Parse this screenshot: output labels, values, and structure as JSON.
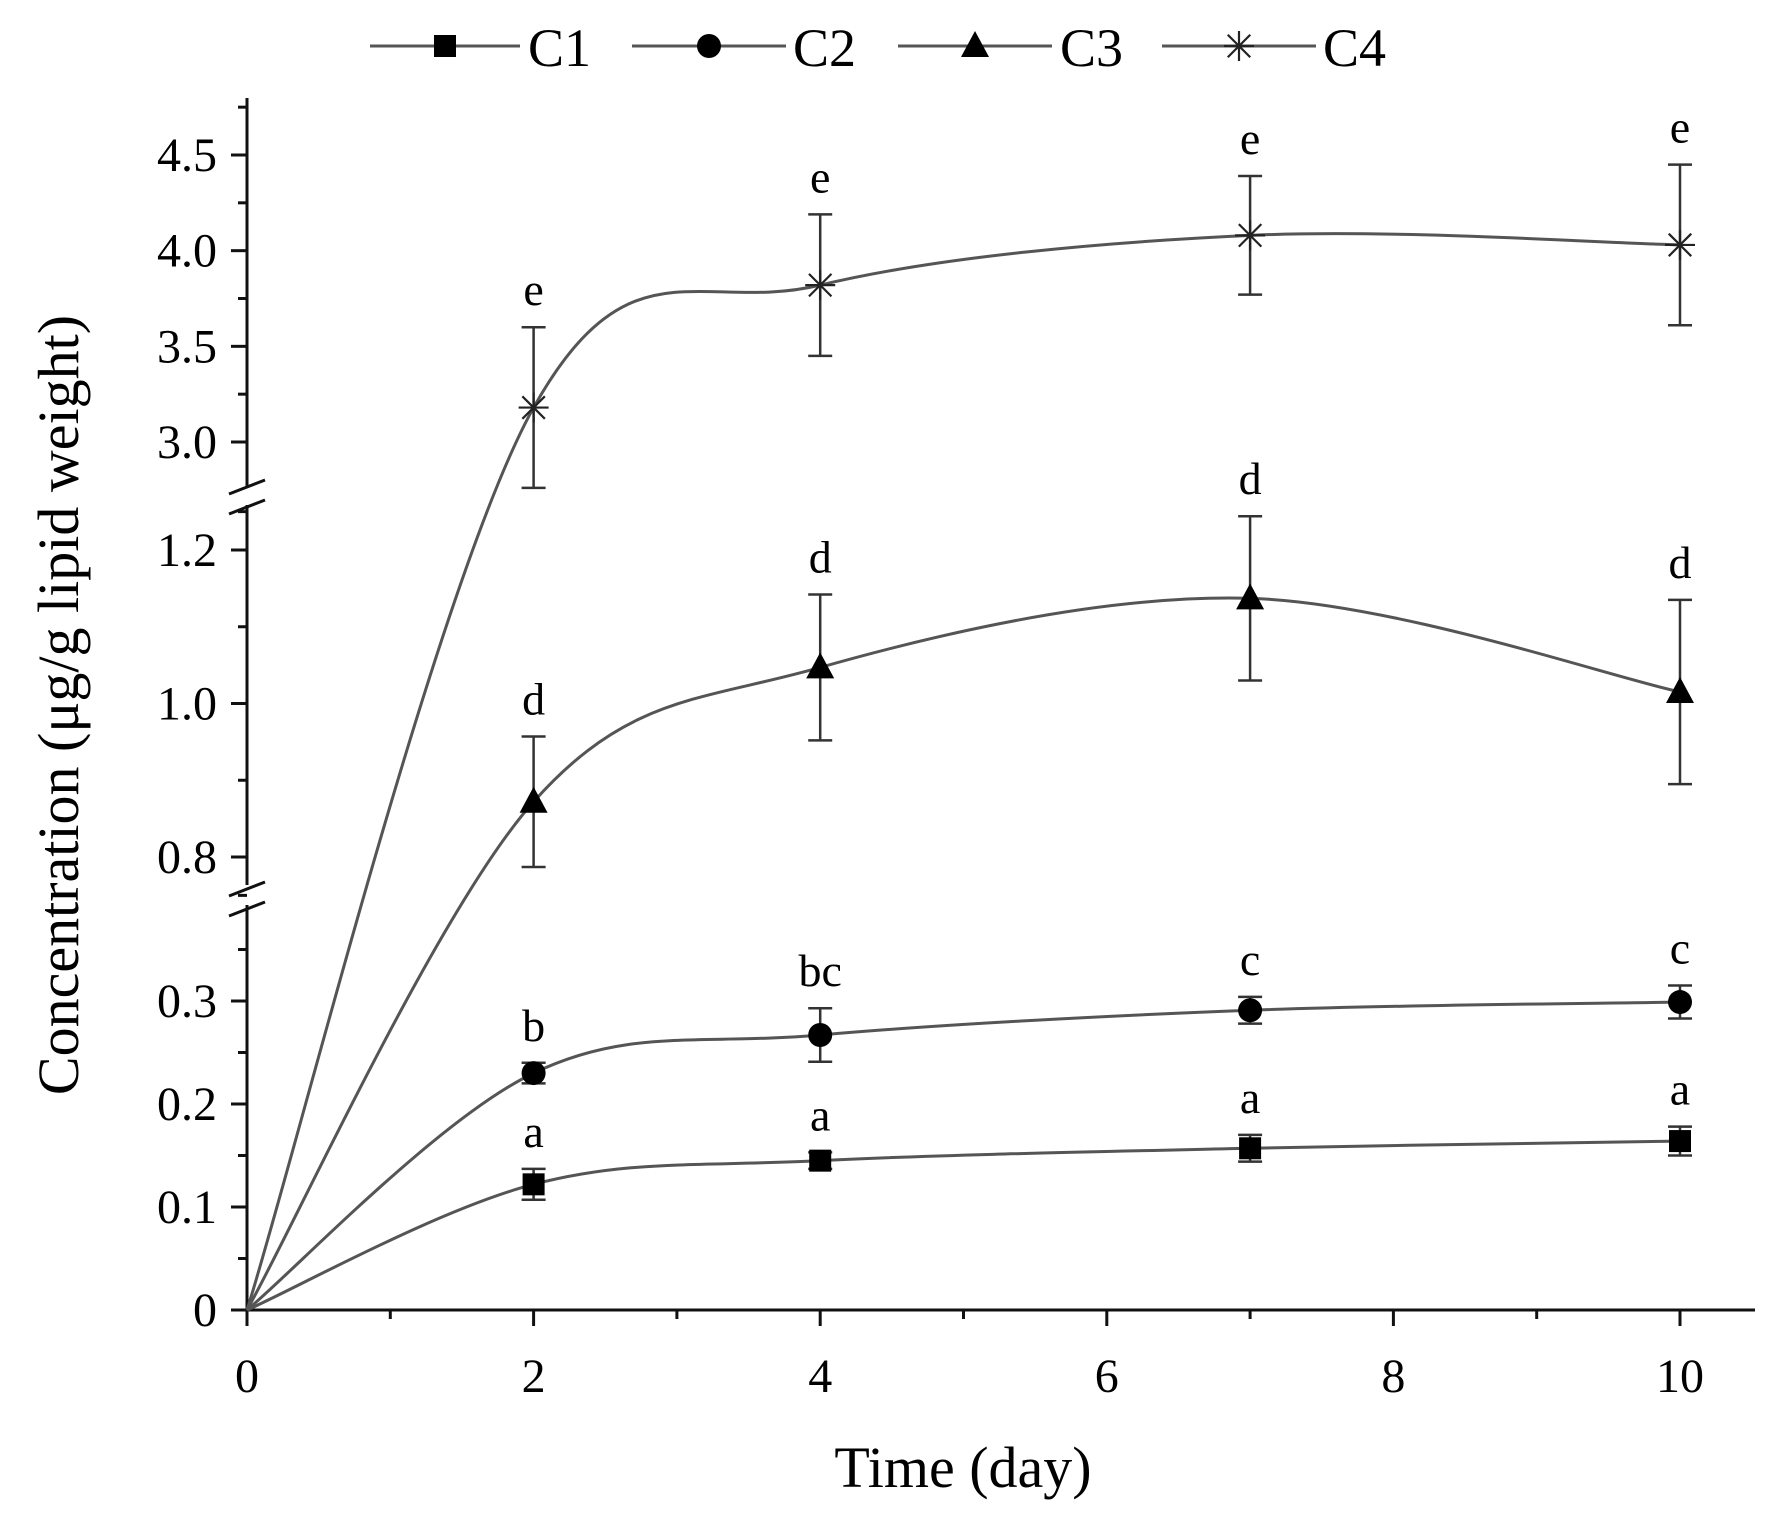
{
  "chart_data": {
    "type": "line",
    "title": "",
    "xlabel": "Time (day)",
    "ylabel": "Concentration (μg/g lipid weight)",
    "xlim": [
      0,
      10.5
    ],
    "xticks": [
      0,
      2,
      4,
      6,
      8,
      10
    ],
    "x_tick_labels": [
      "0",
      "2",
      "4",
      "6",
      "8",
      "10"
    ],
    "y_axis_break": true,
    "y_segments": [
      {
        "range": [
          0,
          0.37
        ],
        "ticks": [
          0,
          0.1,
          0.2,
          0.3
        ],
        "tick_labels": [
          "0",
          "0.1",
          "0.2",
          "0.3"
        ]
      },
      {
        "range": [
          0.75,
          1.25
        ],
        "ticks": [
          0.8,
          1.0,
          1.2
        ],
        "tick_labels": [
          "0.8",
          "1.0",
          "1.2"
        ]
      },
      {
        "range": [
          2.8,
          4.8
        ],
        "ticks": [
          3.0,
          3.5,
          4.0,
          4.5
        ],
        "tick_labels": [
          "3.0",
          "3.5",
          "4.0",
          "4.5"
        ]
      }
    ],
    "legend_position": "top",
    "series": [
      {
        "name": "C1",
        "marker": "square",
        "x": [
          0,
          2,
          4,
          7,
          10
        ],
        "y": [
          0,
          0.122,
          0.145,
          0.157,
          0.164
        ],
        "error": [
          0,
          0.015,
          0.008,
          0.013,
          0.014
        ],
        "labels": [
          "",
          "a",
          "a",
          "a",
          "a"
        ]
      },
      {
        "name": "C2",
        "marker": "circle",
        "x": [
          0,
          2,
          4,
          7,
          10
        ],
        "y": [
          0,
          0.23,
          0.267,
          0.291,
          0.299
        ],
        "error": [
          0,
          0.01,
          0.026,
          0.013,
          0.016
        ],
        "labels": [
          "",
          "b",
          "bc",
          "c",
          "c"
        ]
      },
      {
        "name": "C3",
        "marker": "triangle",
        "x": [
          0,
          2,
          4,
          7,
          10
        ],
        "y": [
          0,
          0.872,
          1.047,
          1.137,
          1.015
        ],
        "error": [
          0,
          0.085,
          0.095,
          0.107,
          0.12
        ],
        "labels": [
          "",
          "d",
          "d",
          "d",
          "d"
        ]
      },
      {
        "name": "C4",
        "marker": "asterisk",
        "x": [
          0,
          2,
          4,
          7,
          10
        ],
        "y": [
          0,
          3.18,
          3.82,
          4.08,
          4.03
        ],
        "error": [
          0,
          0.42,
          0.37,
          0.31,
          0.42
        ],
        "labels": [
          "",
          "e",
          "e",
          "e",
          "e"
        ]
      }
    ]
  }
}
